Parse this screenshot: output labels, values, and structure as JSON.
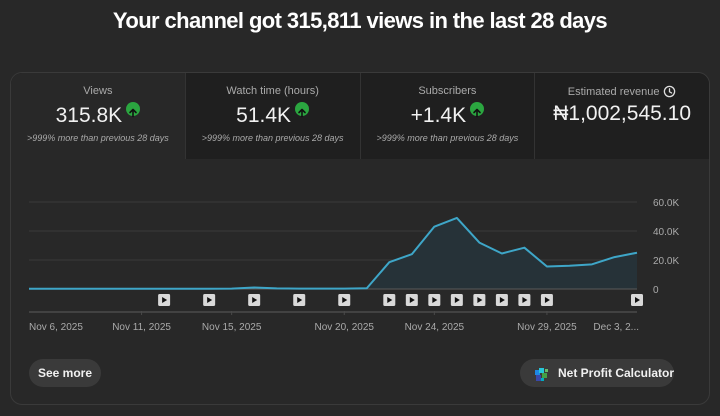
{
  "headline": "Your channel got 315,811 views in the last 28 days",
  "cards": [
    {
      "label": "Views",
      "value": "315.8K",
      "trend": "up",
      "delta": ">999% more than previous 28 days",
      "selected": true
    },
    {
      "label": "Watch time (hours)",
      "value": "51.4K",
      "trend": "up",
      "delta": ">999% more than previous 28 days",
      "selected": false
    },
    {
      "label": "Subscribers",
      "value": "+1.4K",
      "trend": "up",
      "delta": ">999% more than previous 28 days",
      "selected": false
    },
    {
      "label": "Estimated revenue",
      "value": "₦1,002,545.10",
      "icon": "clock-icon",
      "selected": false
    }
  ],
  "colors": {
    "line": "#3ea6c8",
    "area": "#263238",
    "up_badge": "#2ba640"
  },
  "chart_data": {
    "type": "area",
    "title": "Views",
    "x": [
      "Nov 6",
      "Nov 7",
      "Nov 8",
      "Nov 9",
      "Nov 10",
      "Nov 11",
      "Nov 12",
      "Nov 13",
      "Nov 14",
      "Nov 15",
      "Nov 16",
      "Nov 17",
      "Nov 18",
      "Nov 19",
      "Nov 20",
      "Nov 21",
      "Nov 22",
      "Nov 23",
      "Nov 24",
      "Nov 25",
      "Nov 26",
      "Nov 27",
      "Nov 28",
      "Nov 29",
      "Nov 30",
      "Dec 1",
      "Dec 2",
      "Dec 3"
    ],
    "values": [
      200,
      200,
      200,
      200,
      200,
      200,
      200,
      200,
      200,
      300,
      1000,
      400,
      300,
      300,
      300,
      500,
      18500,
      24000,
      43000,
      49000,
      32000,
      24500,
      28500,
      15500,
      16000,
      17000,
      22000,
      25000
    ],
    "x_tick_labels": [
      "Nov 6, 2025",
      "Nov 11, 2025",
      "Nov 15, 2025",
      "Nov 20, 2025",
      "Nov 24, 2025",
      "Nov 29, 2025",
      "Dec 3, 2..."
    ],
    "x_tick_index": [
      0,
      5,
      9,
      14,
      18,
      23,
      27
    ],
    "y_tick_labels": [
      "0",
      "20.0K",
      "40.0K",
      "60.0K"
    ],
    "y_ticks": [
      0,
      20000,
      40000,
      60000
    ],
    "ylim": [
      0,
      60000
    ],
    "xlabel": "",
    "ylabel": "",
    "grid": true,
    "video_markers_index": [
      6,
      8,
      10,
      12,
      14,
      16,
      17,
      18,
      19,
      20,
      21,
      22,
      23,
      27
    ]
  },
  "actions": {
    "see_more": "See more",
    "net_profit_calculator": "Net Profit Calculator"
  }
}
